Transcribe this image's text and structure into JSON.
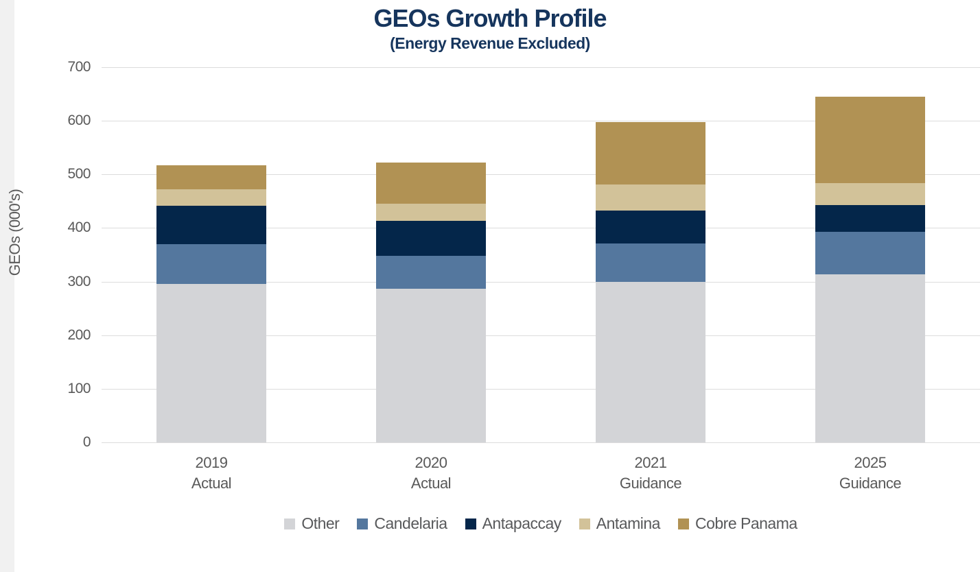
{
  "page": {
    "background_color": "#ffffff",
    "left_strip_color": "#f1f1f1"
  },
  "header": {
    "title": "GEOs Growth Profile",
    "subtitle": "(Energy Revenue Excluded)",
    "title_color": "#16355d"
  },
  "axes": {
    "y_axis_title": "GEOs (000's)",
    "y_ticks": [
      0,
      100,
      200,
      300,
      400,
      500,
      600,
      700
    ],
    "tick_text_color": "#595959",
    "gridline_color": "#dcdcdc"
  },
  "chart_data": {
    "type": "bar",
    "stacked": true,
    "title": "GEOs Growth Profile",
    "subtitle": "(Energy Revenue Excluded)",
    "xlabel": "",
    "ylabel": "GEOs (000's)",
    "ylim": [
      0,
      700
    ],
    "yticks": [
      0,
      100,
      200,
      300,
      400,
      500,
      600,
      700
    ],
    "grid": true,
    "legend_position": "bottom",
    "categories": [
      {
        "line1": "2019",
        "line2": "Actual"
      },
      {
        "line1": "2020",
        "line2": "Actual"
      },
      {
        "line1": "2021",
        "line2": "Guidance"
      },
      {
        "line1": "2025",
        "line2": "Guidance"
      }
    ],
    "series": [
      {
        "name": "Other",
        "color": "#d3d4d7",
        "values": [
          296,
          287,
          300,
          314
        ]
      },
      {
        "name": "Candelaria",
        "color": "#54779e",
        "values": [
          74,
          61,
          71,
          79
        ]
      },
      {
        "name": "Antapaccay",
        "color": "#04264a",
        "values": [
          71,
          65,
          61,
          50
        ]
      },
      {
        "name": "Antamina",
        "color": "#d2c299",
        "values": [
          31,
          32,
          49,
          41
        ]
      },
      {
        "name": "Cobre Panama",
        "color": "#b19254",
        "values": [
          45,
          77,
          117,
          161
        ]
      }
    ],
    "totals": [
      517,
      522,
      598,
      645
    ]
  }
}
